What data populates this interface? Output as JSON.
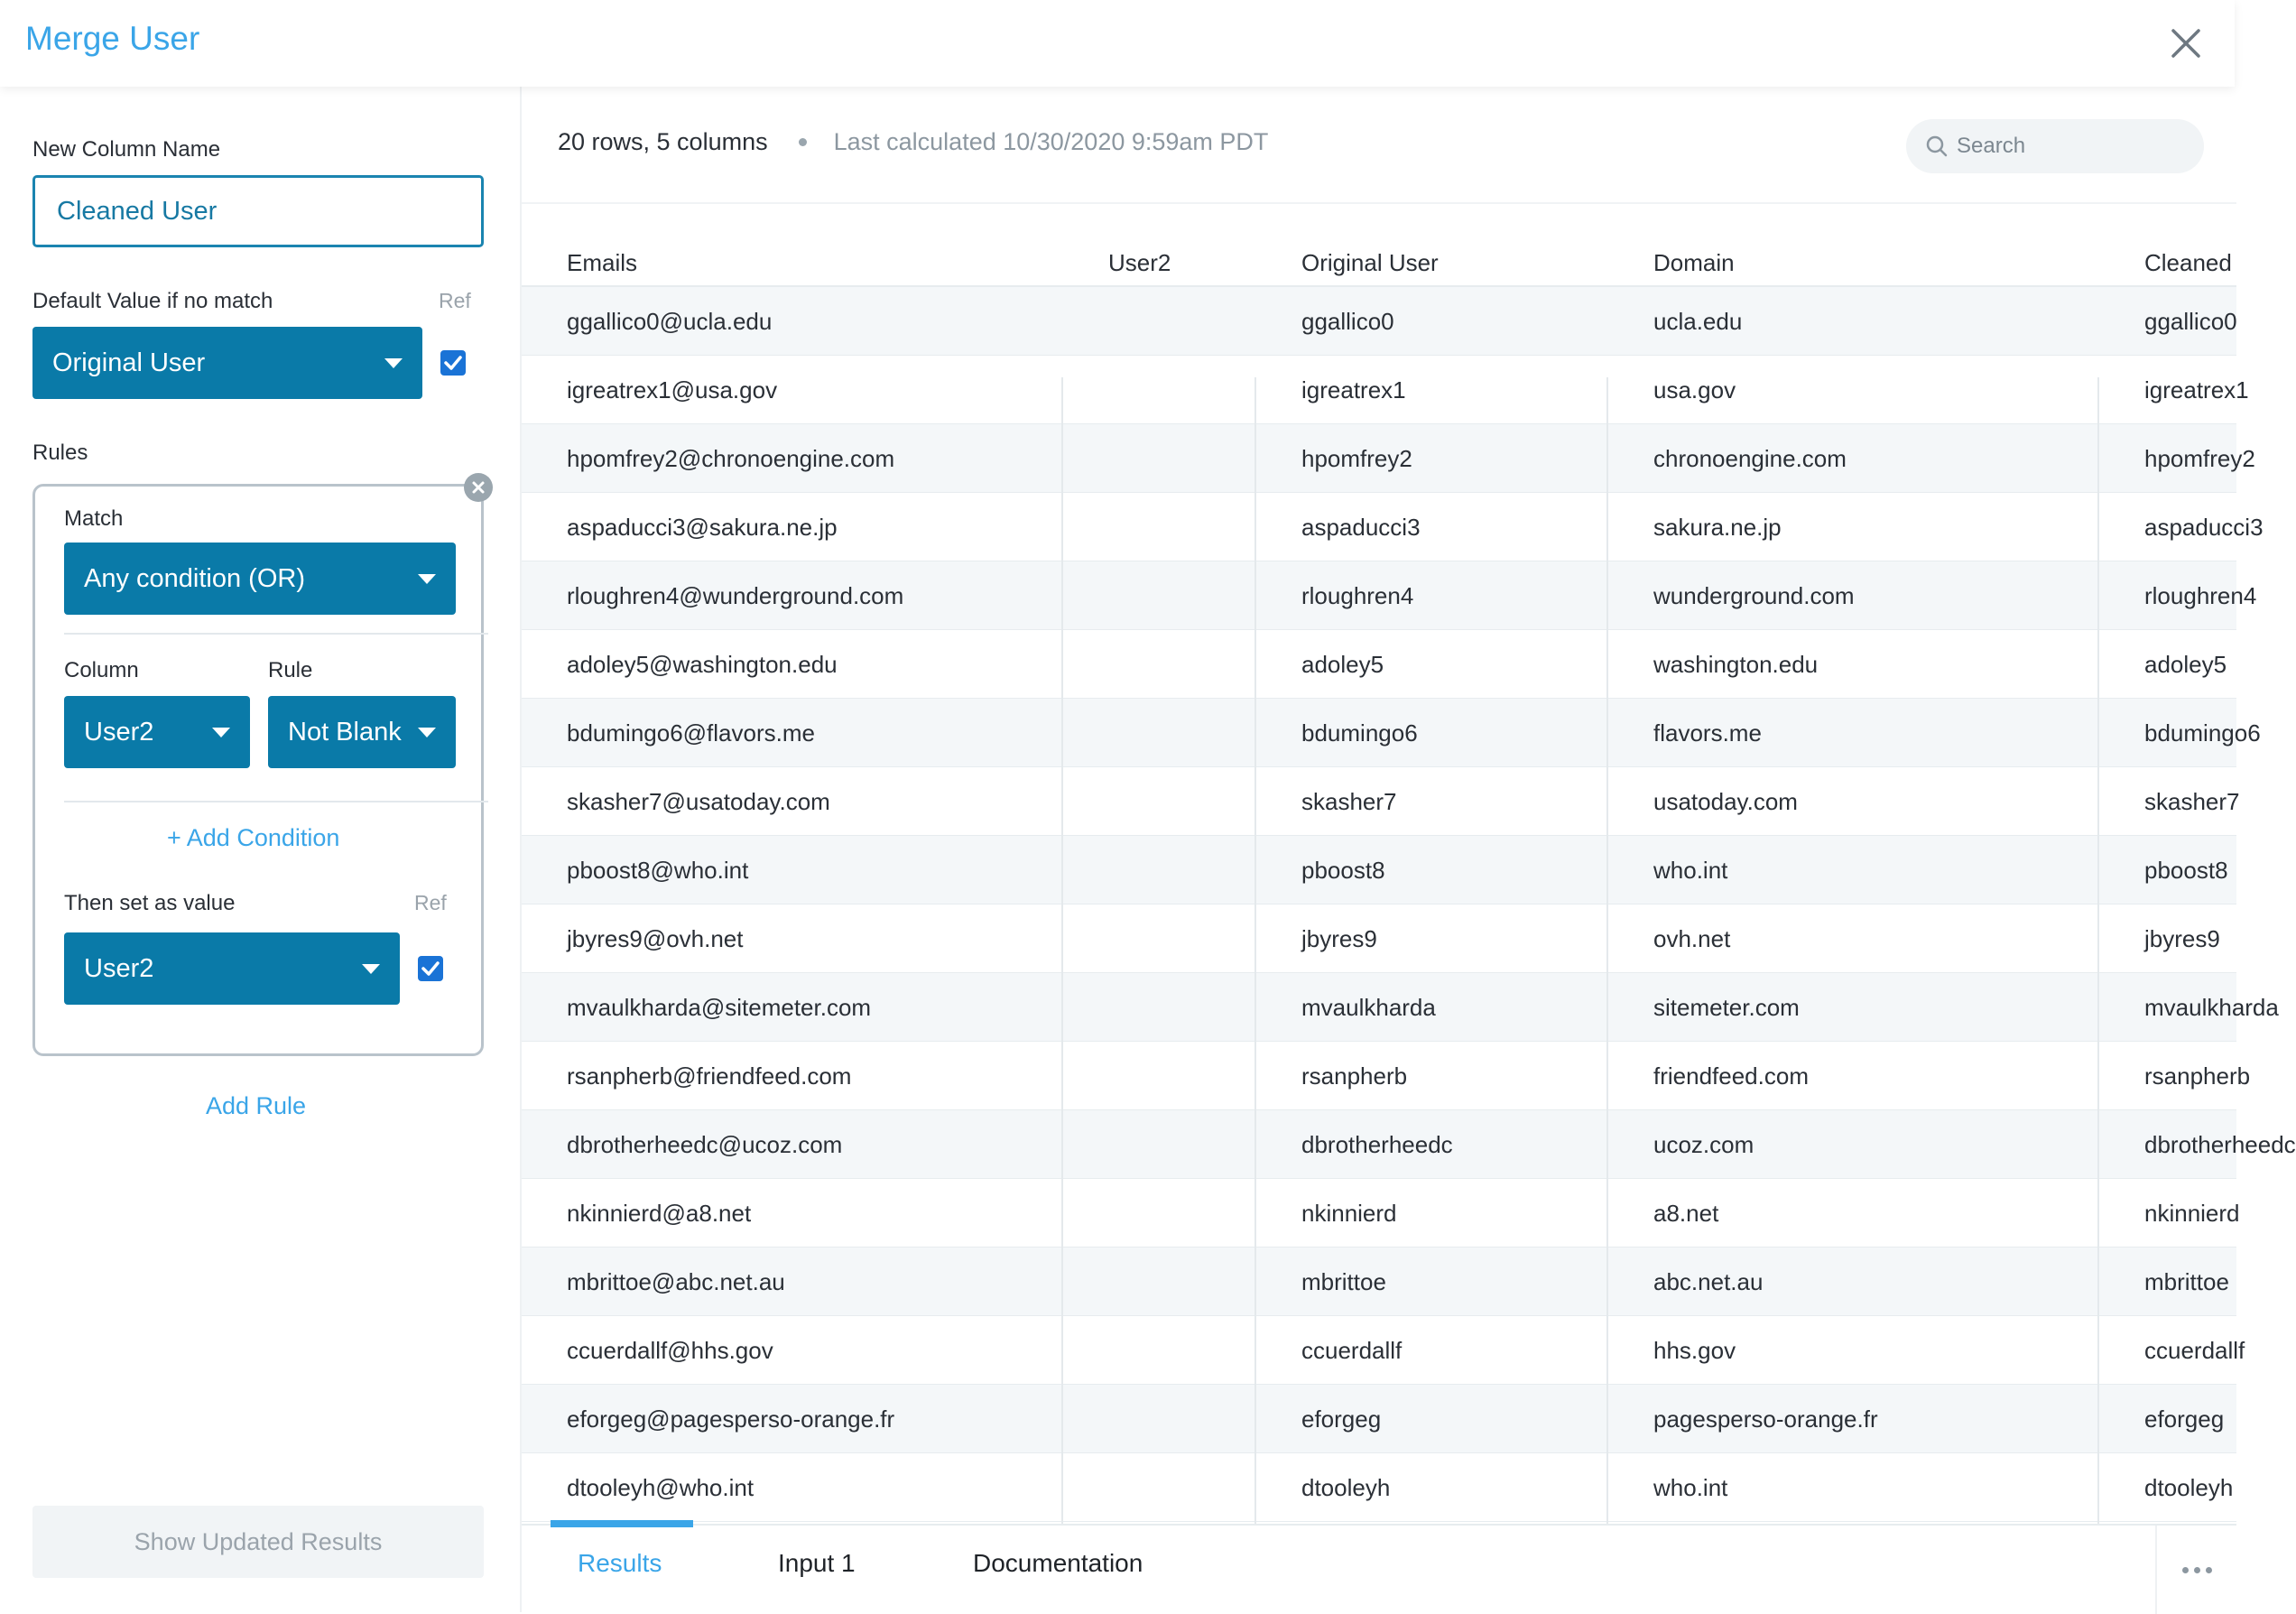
{
  "header": {
    "title": "Merge User"
  },
  "left_panel": {
    "new_column_label": "New Column Name",
    "new_column_value": "Cleaned User",
    "default_label": "Default Value if no match",
    "default_ref": "Ref",
    "default_select": "Original User",
    "rules_label": "Rules",
    "rule": {
      "match_label": "Match",
      "match_select": "Any condition (OR)",
      "column_label": "Column",
      "rule_label": "Rule",
      "column_select": "User2",
      "rule_select": "Not Blank",
      "add_condition": "+ Add Condition",
      "then_label": "Then set as value",
      "then_ref": "Ref",
      "then_select": "User2"
    },
    "add_rule": "Add Rule",
    "show_results": "Show Updated Results"
  },
  "results": {
    "rows_info": "20 rows, 5 columns",
    "last_calc": "Last calculated 10/30/2020 9:59am PDT",
    "search_placeholder": "Search",
    "columns": [
      "Emails",
      "User2",
      "Original User",
      "Domain",
      "Cleaned"
    ],
    "rows": [
      [
        "ggallico0@ucla.edu",
        "",
        "ggallico0",
        "ucla.edu",
        "ggallico0"
      ],
      [
        "igreatrex1@usa.gov",
        "",
        "igreatrex1",
        "usa.gov",
        "igreatrex1"
      ],
      [
        "hpomfrey2@chronoengine.com",
        "",
        "hpomfrey2",
        "chronoengine.com",
        "hpomfrey2"
      ],
      [
        "aspaducci3@sakura.ne.jp",
        "",
        "aspaducci3",
        "sakura.ne.jp",
        "aspaducci3"
      ],
      [
        "rloughren4@wunderground.com",
        "",
        "rloughren4",
        "wunderground.com",
        "rloughren4"
      ],
      [
        "adoley5@washington.edu",
        "",
        "adoley5",
        "washington.edu",
        "adoley5"
      ],
      [
        "bdumingo6@flavors.me",
        "",
        "bdumingo6",
        "flavors.me",
        "bdumingo6"
      ],
      [
        "skasher7@usatoday.com",
        "",
        "skasher7",
        "usatoday.com",
        "skasher7"
      ],
      [
        "pboost8@who.int",
        "",
        "pboost8",
        "who.int",
        "pboost8"
      ],
      [
        "jbyres9@ovh.net",
        "",
        "jbyres9",
        "ovh.net",
        "jbyres9"
      ],
      [
        "mvaulkharda@sitemeter.com",
        "",
        "mvaulkharda",
        "sitemeter.com",
        "mvaulkharda"
      ],
      [
        "rsanpherb@friendfeed.com",
        "",
        "rsanpherb",
        "friendfeed.com",
        "rsanpherb"
      ],
      [
        "dbrotherheedc@ucoz.com",
        "",
        "dbrotherheedc",
        "ucoz.com",
        "dbrotherheedc"
      ],
      [
        "nkinnierd@a8.net",
        "",
        "nkinnierd",
        "a8.net",
        "nkinnierd"
      ],
      [
        "mbrittoe@abc.net.au",
        "",
        "mbrittoe",
        "abc.net.au",
        "mbrittoe"
      ],
      [
        "ccuerdallf@hhs.gov",
        "",
        "ccuerdallf",
        "hhs.gov",
        "ccuerdallf"
      ],
      [
        "eforgeg@pagesperso-orange.fr",
        "",
        "eforgeg",
        "pagesperso-orange.fr",
        "eforgeg"
      ],
      [
        "dtooleyh@who.int",
        "",
        "dtooleyh",
        "who.int",
        "dtooleyh"
      ]
    ]
  },
  "tabs": [
    {
      "label": "Results",
      "active": true
    },
    {
      "label": "Input 1",
      "active": false
    },
    {
      "label": "Documentation",
      "active": false
    }
  ],
  "icons": {
    "close": "close-icon",
    "search": "search-icon",
    "caret": "chevron-down-icon",
    "check": "checkbox-checked-icon",
    "remove": "remove-rule-icon",
    "more": "more-icon"
  },
  "colors": {
    "accent": "#3aa5e8",
    "select_bg": "#0a7aa8",
    "checkbox": "#1a73d6"
  }
}
